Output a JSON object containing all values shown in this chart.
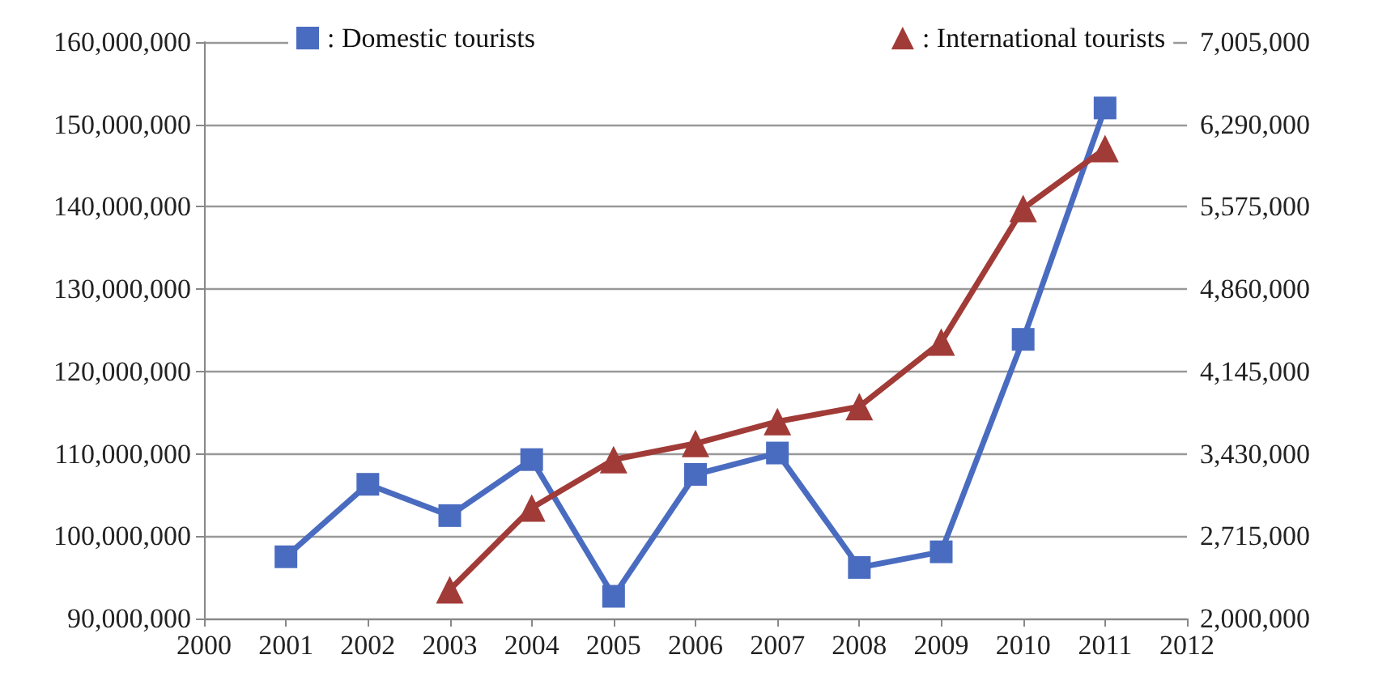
{
  "chart_data": {
    "type": "line",
    "x": [
      2001,
      2002,
      2003,
      2004,
      2005,
      2006,
      2007,
      2008,
      2009,
      2010,
      2011
    ],
    "series": [
      {
        "name": ": Domestic tourists",
        "color": "#4a6cc0",
        "marker": "square",
        "values": [
          97500000,
          106300000,
          102500000,
          109300000,
          92700000,
          107500000,
          110100000,
          96200000,
          98100000,
          123900000,
          152000000
        ]
      },
      {
        "name": ": International tourists",
        "color": "#a13b37",
        "marker": "triangle",
        "axis": "y2",
        "values": [
          null,
          null,
          2250000,
          2960000,
          3380000,
          3520000,
          3710000,
          3840000,
          4400000,
          5560000,
          6080000
        ]
      }
    ],
    "xlim": [
      2000,
      2012
    ],
    "xticks": [
      2000,
      2001,
      2002,
      2003,
      2004,
      2005,
      2006,
      2007,
      2008,
      2009,
      2010,
      2011,
      2012
    ],
    "ylim": [
      90000000,
      160000000
    ],
    "yticks": [
      {
        "value": 90000000,
        "label": "90,000,000"
      },
      {
        "value": 100000000,
        "label": "100,000,000"
      },
      {
        "value": 110000000,
        "label": "110,000,000"
      },
      {
        "value": 120000000,
        "label": "120,000,000"
      },
      {
        "value": 130000000,
        "label": "130,000,000"
      },
      {
        "value": 140000000,
        "label": "140,000,000"
      },
      {
        "value": 150000000,
        "label": "150,000,000"
      },
      {
        "value": 160000000,
        "label": "160,000,000"
      }
    ],
    "y2lim": [
      2000000,
      7005000
    ],
    "y2ticks": [
      {
        "value": 2000000,
        "label": "2,000,000"
      },
      {
        "value": 2715000,
        "label": "2,715,000"
      },
      {
        "value": 3430000,
        "label": "3,430,000"
      },
      {
        "value": 4145000,
        "label": "4,145,000"
      },
      {
        "value": 4860000,
        "label": "4,860,000"
      },
      {
        "value": 5575000,
        "label": "5,575,000"
      },
      {
        "value": 6290000,
        "label": "6,290,000"
      },
      {
        "value": 7005000,
        "label": "7,005,000"
      }
    ],
    "grid": "y",
    "legend": "top"
  }
}
